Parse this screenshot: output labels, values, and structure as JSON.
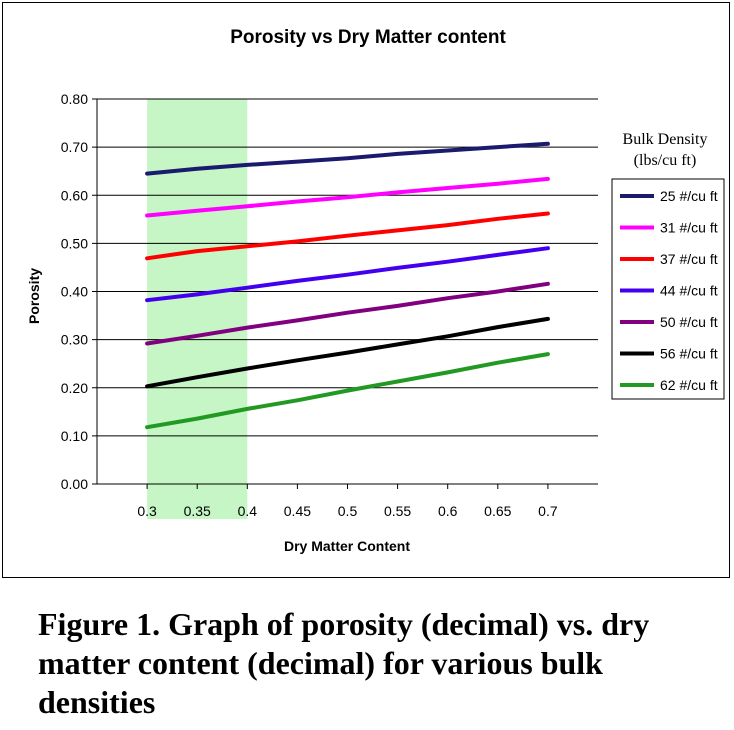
{
  "caption": "Figure 1. Graph of porosity (decimal) vs. dry matter content (decimal) for various bulk densities",
  "chart_data": {
    "type": "line",
    "title": "Porosity vs Dry Matter content",
    "xlabel": "Dry Matter Content",
    "ylabel": "Porosity",
    "x": [
      0.3,
      0.35,
      0.4,
      0.45,
      0.5,
      0.55,
      0.6,
      0.65,
      0.7
    ],
    "xtick_labels": [
      "0.3",
      "0.35",
      "0.4",
      "0.45",
      "0.5",
      "0.55",
      "0.6",
      "0.65",
      "0.7"
    ],
    "ylim": [
      0,
      0.8
    ],
    "ytick_labels": [
      "0.00",
      "0.10",
      "0.20",
      "0.30",
      "0.40",
      "0.50",
      "0.60",
      "0.70",
      "0.80"
    ],
    "grid": "horizontal",
    "legend_title": "Bulk Density (lbs/cu ft)",
    "legend_position": "right",
    "highlight_region": {
      "x_range": [
        0.3,
        0.4
      ],
      "color": "#c6f5c6"
    },
    "series": [
      {
        "name": "25 #/cu ft",
        "color": "#1a1a6e",
        "values": [
          0.645,
          0.655,
          0.663,
          0.67,
          0.677,
          0.686,
          0.693,
          0.7,
          0.707
        ]
      },
      {
        "name": "31 #/cu ft",
        "color": "#ff00ff",
        "values": [
          0.558,
          0.568,
          0.577,
          0.587,
          0.596,
          0.606,
          0.615,
          0.624,
          0.634
        ]
      },
      {
        "name": "37 #/cu ft",
        "color": "#ff0000",
        "values": [
          0.469,
          0.484,
          0.494,
          0.504,
          0.516,
          0.527,
          0.538,
          0.551,
          0.562
        ]
      },
      {
        "name": "44 #/cu ft",
        "color": "#4400ee",
        "values": [
          0.382,
          0.394,
          0.408,
          0.422,
          0.435,
          0.449,
          0.462,
          0.476,
          0.49
        ]
      },
      {
        "name": "50 #/cu ft",
        "color": "#800080",
        "values": [
          0.292,
          0.308,
          0.325,
          0.34,
          0.356,
          0.37,
          0.386,
          0.4,
          0.416
        ]
      },
      {
        "name": "56 #/cu ft",
        "color": "#000000",
        "values": [
          0.203,
          0.222,
          0.24,
          0.257,
          0.273,
          0.29,
          0.307,
          0.326,
          0.343
        ]
      },
      {
        "name": "62 #/cu ft",
        "color": "#229922",
        "values": [
          0.118,
          0.136,
          0.156,
          0.174,
          0.194,
          0.213,
          0.232,
          0.252,
          0.27
        ]
      }
    ]
  }
}
